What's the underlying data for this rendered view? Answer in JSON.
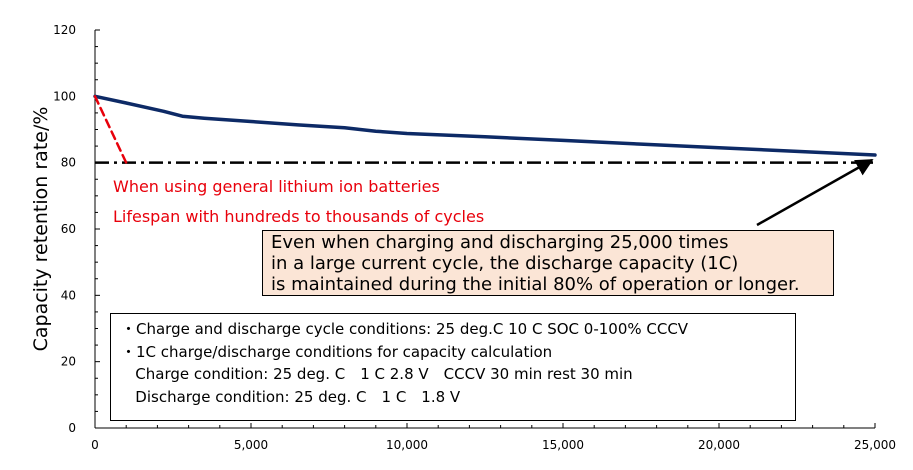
{
  "chart_data": {
    "type": "line",
    "title": "",
    "xlabel": "",
    "ylabel": "Capacity retention rate/%",
    "xlim": [
      0,
      25000
    ],
    "ylim": [
      0,
      120
    ],
    "x_ticks": [
      0,
      5000,
      10000,
      15000,
      20000,
      25000
    ],
    "x_tick_labels": [
      "0",
      "5,000",
      "10,000",
      "15,000",
      "20,000",
      "25,000"
    ],
    "y_ticks": [
      0,
      20,
      40,
      60,
      80,
      100,
      120
    ],
    "y_tick_labels": [
      "0",
      "20",
      "40",
      "60",
      "80",
      "100",
      "120"
    ],
    "series": [
      {
        "color": "#0d2a66",
        "style": "solid",
        "x": [
          0,
          1000,
          2200,
          2800,
          3500,
          5000,
          6500,
          8000,
          9000,
          10000,
          12500,
          15000,
          17500,
          20000,
          22500,
          25000
        ],
        "y": [
          100,
          98,
          95.5,
          94,
          93.4,
          92.4,
          91.4,
          90.5,
          89.5,
          88.8,
          87.8,
          86.7,
          85.6,
          84.5,
          83.4,
          82.3
        ]
      },
      {
        "color": "#e8000b",
        "style": "dashed",
        "x": [
          0,
          1000
        ],
        "y": [
          100,
          80
        ]
      }
    ],
    "reference_line": {
      "y": 80,
      "style": "dash-dot",
      "color": "#000000"
    },
    "annotations": [
      "When using general lithium ion batteries",
      "Lifespan with hundreds to thousands of cycles"
    ],
    "grid": false
  },
  "callout": {
    "lines": [
      "Even when charging and discharging 25,000 times",
      "in a large current cycle, the discharge capacity (1C)",
      "is maintained during the initial 80% of operation or longer."
    ]
  },
  "conditions": {
    "lines": [
      "・Charge and discharge cycle conditions: 25 deg.C 10 C SOC 0-100% CCCV",
      "・1C charge/discharge conditions for capacity calculation",
      "   Charge condition: 25 deg. C　1 C 2.8 V　CCCV 30 min rest 30 min",
      "   Discharge condition: 25 deg. C　1 C　1.8 V"
    ]
  }
}
